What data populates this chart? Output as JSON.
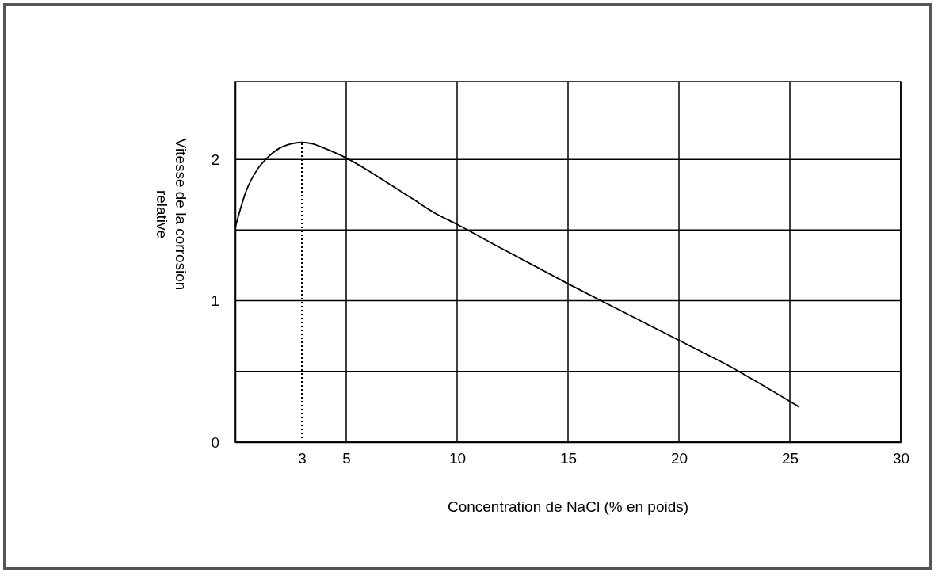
{
  "chart_data": {
    "type": "line",
    "xlabel": "Concentration de NaCl (% en poids)",
    "ylabel": "Vitesse de la corrosion relative",
    "xlim": [
      0,
      30
    ],
    "ylim": [
      0,
      2.55
    ],
    "xticks": [
      3,
      5,
      10,
      15,
      20,
      25,
      30
    ],
    "yticks": [
      0,
      {
        "value": 0.5,
        "label": null
      },
      1,
      {
        "value": 1.5,
        "label": null
      },
      2
    ],
    "grid": true,
    "x": [
      0,
      0.5,
      1,
      1.5,
      2,
      2.5,
      3,
      3.5,
      4,
      5,
      6,
      7,
      8,
      9,
      10,
      12,
      15,
      18,
      20,
      22,
      25.4
    ],
    "series": [
      {
        "color": "#000000",
        "values": [
          1.52,
          1.78,
          1.93,
          2.02,
          2.08,
          2.11,
          2.12,
          2.11,
          2.08,
          2.01,
          1.92,
          1.82,
          1.72,
          1.62,
          1.54,
          1.37,
          1.12,
          0.88,
          0.72,
          0.56,
          0.25
        ]
      }
    ],
    "ref_lines": [
      {
        "axis": "x",
        "value": 3,
        "line_style": "dotted",
        "color": "#000000"
      }
    ]
  }
}
